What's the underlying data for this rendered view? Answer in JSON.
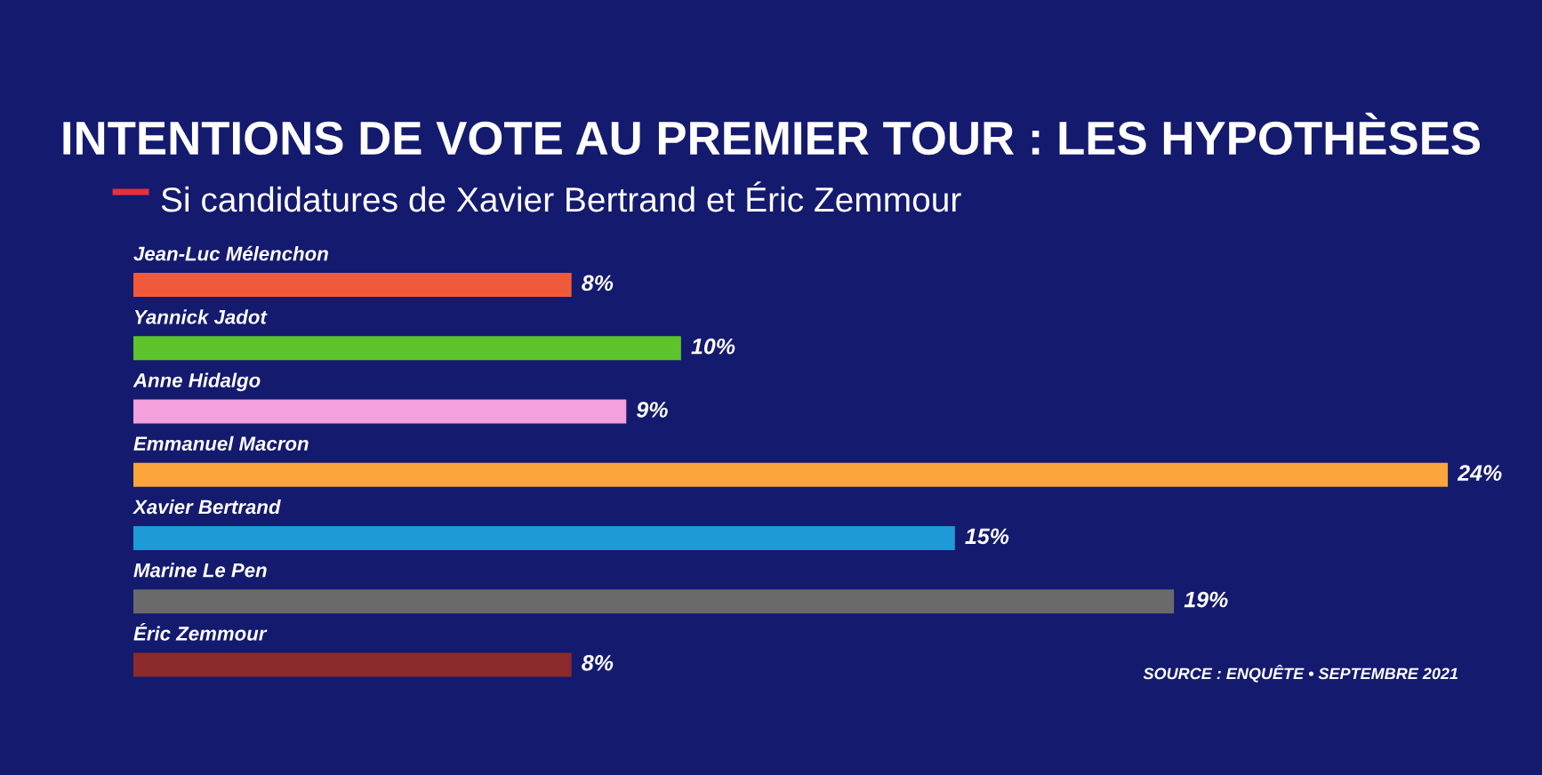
{
  "chart_data": {
    "type": "bar",
    "orientation": "horizontal",
    "title": "INTENTIONS DE VOTE AU PREMIER TOUR : LES HYPOTHÈSES",
    "subtitle": "Si candidatures de Xavier Bertrand et Éric Zemmour",
    "categories": [
      "Jean-Luc Mélenchon",
      "Yannick Jadot",
      "Anne Hidalgo",
      "Emmanuel Macron",
      "Xavier Bertrand",
      "Marine Le Pen",
      "Éric Zemmour"
    ],
    "values": [
      8,
      10,
      9,
      24,
      15,
      19,
      8
    ],
    "colors": [
      "#f05a3a",
      "#5cc42a",
      "#f4a0dc",
      "#fba53a",
      "#1e9ad6",
      "#6a6a6a",
      "#8a2a2a"
    ],
    "value_labels": [
      "8%",
      "10%",
      "9%",
      "24%",
      "15%",
      "19%",
      "8%"
    ],
    "tick_labels": false,
    "grid": false,
    "legend": false,
    "annotations": [
      "SOURCE : ENQUÊTE • SEPTEMBRE 2021"
    ]
  }
}
